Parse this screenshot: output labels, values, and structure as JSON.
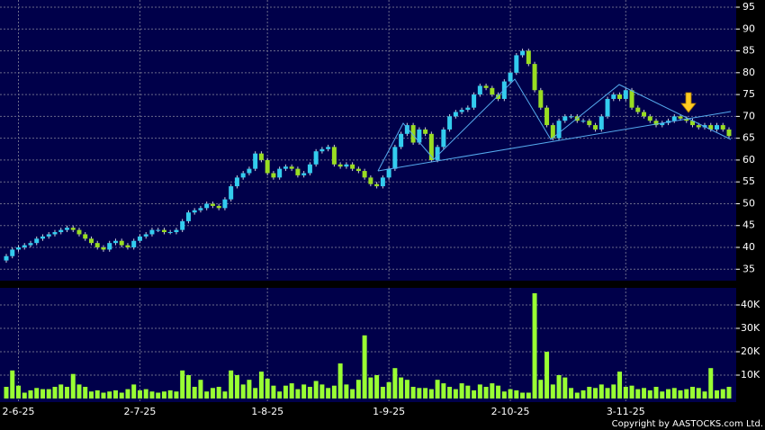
{
  "chart_data": {
    "type": "candlestick",
    "copyright": "Copyright by AASTOCKS.com Ltd.",
    "categories": [
      null,
      null,
      "2-6-25",
      null,
      null,
      null,
      null,
      null,
      null,
      null,
      null,
      null,
      null,
      null,
      null,
      null,
      null,
      null,
      null,
      null,
      null,
      null,
      "2-7-25",
      null,
      null,
      null,
      null,
      null,
      null,
      null,
      null,
      null,
      null,
      null,
      null,
      null,
      null,
      null,
      null,
      null,
      null,
      null,
      null,
      "1-8-25",
      null,
      null,
      null,
      null,
      null,
      null,
      null,
      null,
      null,
      null,
      null,
      null,
      null,
      null,
      null,
      null,
      null,
      null,
      null,
      "1-9-25",
      null,
      null,
      null,
      null,
      null,
      null,
      null,
      null,
      null,
      null,
      null,
      null,
      null,
      null,
      null,
      null,
      null,
      null,
      null,
      "2-10-25",
      null,
      null,
      null,
      null,
      null,
      null,
      null,
      null,
      null,
      null,
      null,
      null,
      null,
      null,
      null,
      null,
      null,
      null,
      "3-11-25",
      null,
      null,
      null,
      null,
      null,
      null,
      null,
      null,
      null,
      null,
      null,
      null,
      null,
      null,
      null,
      null,
      null
    ],
    "open": [
      37,
      38,
      39.5,
      40,
      40.5,
      41,
      42,
      42.5,
      43,
      43.5,
      44,
      44.5,
      44,
      43,
      42,
      41,
      40,
      39.5,
      41,
      41.5,
      40.5,
      40,
      41.5,
      42.5,
      43,
      44,
      44,
      43.5,
      43.5,
      44,
      46,
      48,
      48.5,
      49,
      50,
      49.5,
      49,
      51,
      54,
      56,
      57,
      58,
      61.5,
      60,
      57,
      56,
      58,
      58.5,
      58,
      56.5,
      57,
      59,
      62,
      62.5,
      63,
      59,
      58.5,
      59,
      58,
      57.5,
      56,
      54.5,
      54,
      56,
      58,
      63,
      66,
      68,
      64,
      67,
      66,
      60,
      63,
      67,
      70,
      71,
      71.5,
      72,
      75,
      77,
      76.5,
      75,
      74,
      78,
      80,
      84,
      85,
      82,
      76,
      72,
      68,
      65,
      69,
      70,
      70,
      69,
      69,
      68,
      67,
      70,
      74,
      75,
      74,
      76,
      72,
      71,
      70,
      69,
      68,
      68.5,
      69,
      70,
      69.5,
      69,
      68,
      67.5,
      68,
      67,
      68,
      67
    ],
    "high": [
      38.5,
      40,
      40.5,
      41,
      41.5,
      42.5,
      43,
      43.5,
      44,
      44.5,
      45,
      45,
      44.5,
      43.5,
      42.5,
      41.5,
      40.5,
      41.5,
      42,
      42,
      41,
      42,
      43,
      43.5,
      44.5,
      44.5,
      44.5,
      44,
      44.5,
      46.5,
      48.5,
      49,
      49.5,
      50.5,
      50.5,
      50,
      51.5,
      54.5,
      56.5,
      57.5,
      58.5,
      62,
      62,
      60.5,
      57.5,
      58.5,
      59,
      59,
      58.5,
      57.5,
      59.5,
      62.5,
      63,
      63.5,
      63.5,
      59.5,
      59.5,
      59.5,
      58.5,
      58,
      56.5,
      55,
      56.5,
      58.5,
      63.5,
      66.5,
      68.5,
      68.5,
      67.5,
      67.5,
      66.5,
      63.5,
      67.5,
      70.5,
      71.5,
      72,
      72.5,
      75.5,
      77.5,
      77.5,
      77,
      75.5,
      78.5,
      80.5,
      84.5,
      85.5,
      85.5,
      82.5,
      76.5,
      72.5,
      68.5,
      69.5,
      70.5,
      70.5,
      70.5,
      69.5,
      69.5,
      68.5,
      70.5,
      74.5,
      75.5,
      75.5,
      76.5,
      76.5,
      72.5,
      71.5,
      70.5,
      69.5,
      69,
      69.5,
      70.5,
      70.5,
      70,
      69.5,
      68.5,
      68.5,
      68.5,
      68.5,
      68.5,
      67.5
    ],
    "low": [
      36.5,
      37.5,
      39,
      39.5,
      40,
      40.5,
      41.5,
      42,
      42.5,
      43,
      43.5,
      43.5,
      42.5,
      41.5,
      40.5,
      39.5,
      39,
      39,
      40.5,
      40,
      39.5,
      39.5,
      41,
      42,
      42.5,
      43.5,
      43,
      43,
      43,
      43.5,
      45.5,
      47.5,
      48,
      48.5,
      49,
      48.5,
      48.5,
      50.5,
      53.5,
      55.5,
      56.5,
      57.5,
      59.5,
      56.5,
      55.5,
      55.5,
      57.5,
      57.5,
      56,
      56,
      56.5,
      58.5,
      61.5,
      62,
      58.5,
      58,
      58,
      57.5,
      57,
      55.5,
      54,
      53.5,
      53.5,
      55.5,
      57.5,
      62.5,
      65.5,
      63.5,
      63.5,
      65.5,
      59.5,
      59.5,
      62.5,
      66.5,
      69.5,
      70.5,
      71,
      71.5,
      74.5,
      76,
      74.5,
      73.5,
      73.5,
      77.5,
      79.5,
      83.5,
      81.5,
      75.5,
      71.5,
      67.5,
      64.5,
      64.5,
      68.5,
      69.5,
      68.5,
      68.5,
      67.5,
      66.5,
      66.5,
      69.5,
      73.5,
      73.5,
      73.5,
      71.5,
      70.5,
      69.5,
      68.5,
      67.5,
      67.5,
      68,
      68.5,
      69,
      68.5,
      67.5,
      67,
      67,
      66.5,
      66.5,
      66.5,
      65
    ],
    "close": [
      38,
      39.5,
      40,
      40.5,
      41,
      42,
      42.5,
      43,
      43.5,
      44,
      44.5,
      44,
      43,
      42,
      41,
      40,
      39.5,
      41,
      41.5,
      40.5,
      40,
      41.5,
      42.5,
      43,
      44,
      44,
      43.5,
      43.5,
      44,
      46,
      48,
      48.5,
      49,
      50,
      49.5,
      49,
      51,
      54,
      56,
      57,
      58,
      61.5,
      60,
      57,
      56,
      58,
      58.5,
      58,
      56.5,
      57,
      59,
      62,
      62.5,
      63,
      59,
      58.5,
      59,
      58,
      57.5,
      56,
      54.5,
      54,
      56,
      58,
      63,
      66,
      68,
      64,
      67,
      66,
      60,
      63,
      67,
      70,
      71,
      71.5,
      72,
      75,
      77,
      76.5,
      75,
      74,
      78,
      80,
      84,
      85,
      82,
      76,
      72,
      68,
      65,
      69,
      70,
      70,
      69,
      69,
      68,
      67,
      70,
      74,
      75,
      74,
      76,
      72,
      71,
      70,
      69,
      68,
      68.5,
      69,
      70,
      69.5,
      69,
      68,
      67.5,
      68,
      67,
      68,
      67,
      65.5
    ],
    "volume": [
      5000,
      12000,
      5500,
      2500,
      3500,
      4500,
      4000,
      4000,
      5000,
      6000,
      5000,
      10500,
      6000,
      5000,
      3000,
      3500,
      2500,
      3000,
      3500,
      2500,
      4000,
      6000,
      3500,
      4000,
      3000,
      2500,
      3000,
      3500,
      3000,
      12000,
      10000,
      5000,
      8000,
      3000,
      4500,
      5000,
      3000,
      12000,
      10000,
      6000,
      8000,
      4500,
      11500,
      8500,
      5500,
      3000,
      5500,
      6500,
      4000,
      6000,
      5000,
      7500,
      6000,
      4500,
      5500,
      15000,
      6000,
      4000,
      8000,
      27000,
      9000,
      10000,
      5000,
      7000,
      13000,
      9000,
      8000,
      5000,
      4500,
      4500,
      4000,
      8000,
      6500,
      5000,
      4000,
      6500,
      5500,
      3500,
      6000,
      5000,
      6500,
      5500,
      3000,
      4000,
      3500,
      2500,
      2500,
      45000,
      8000,
      20000,
      6000,
      10000,
      9000,
      4500,
      2500,
      3500,
      5000,
      4500,
      6000,
      4500,
      6000,
      11500,
      5000,
      5500,
      4000,
      4500,
      3500,
      5000,
      3000,
      4000,
      4500,
      3500,
      4000,
      5000,
      4500,
      3000,
      13000,
      3500,
      4000,
      5000
    ],
    "up_color": "#33ccee",
    "down_color": "#99dd22",
    "volume_color": "#99ff33",
    "ylim": [
      33,
      95
    ],
    "yticks": [
      35,
      40,
      45,
      50,
      55,
      60,
      65,
      70,
      75,
      80,
      85,
      90,
      95
    ],
    "volume_ylim": [
      0,
      45000
    ],
    "volume_ticks": [
      {
        "value": 10000,
        "label": "10K"
      },
      {
        "value": 20000,
        "label": "20K"
      },
      {
        "value": 30000,
        "label": "30K"
      },
      {
        "value": 40000,
        "label": "40K"
      }
    ],
    "grid": true
  }
}
